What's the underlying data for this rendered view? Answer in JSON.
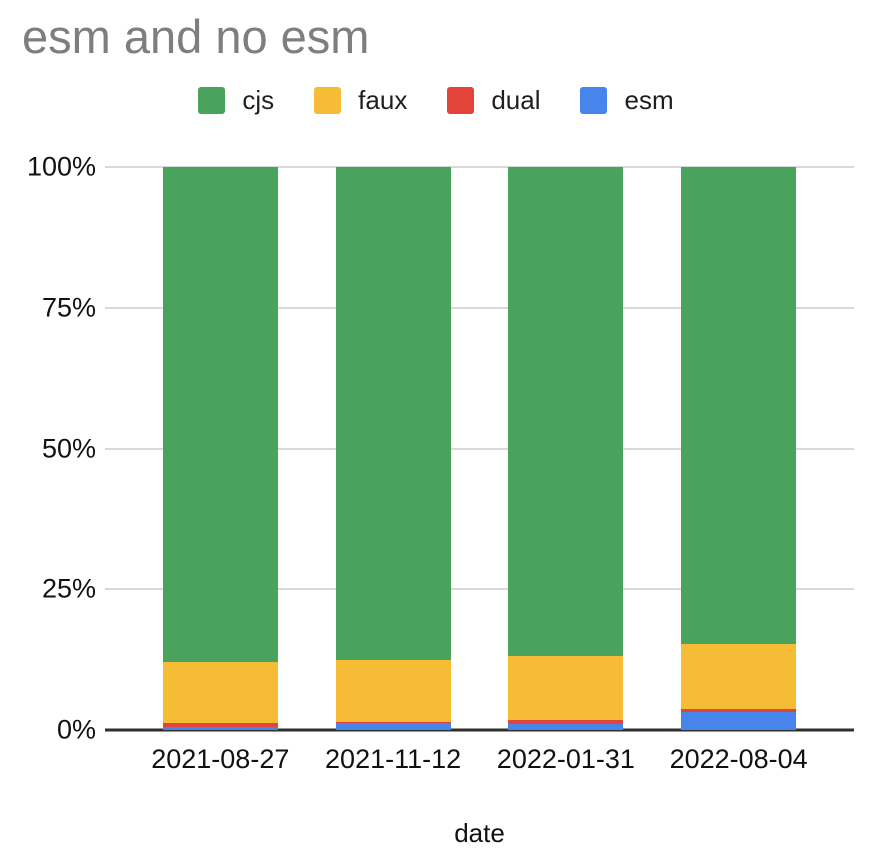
{
  "chart_data": {
    "type": "bar",
    "stacked": true,
    "percent": true,
    "title": "esm and no esm",
    "xlabel": "date",
    "ylabel": "",
    "categories": [
      "2021-08-27",
      "2021-11-12",
      "2022-01-31",
      "2022-08-04"
    ],
    "series": [
      {
        "name": "cjs",
        "color": "#4aa35c",
        "values": [
          88.0,
          87.6,
          86.8,
          84.7
        ]
      },
      {
        "name": "faux",
        "color": "#f6bc36",
        "values": [
          10.8,
          10.9,
          11.5,
          11.6
        ]
      },
      {
        "name": "dual",
        "color": "#e2443a",
        "values": [
          0.6,
          0.2,
          0.6,
          0.5
        ]
      },
      {
        "name": "esm",
        "color": "#4785eb",
        "values": [
          0.6,
          1.3,
          1.1,
          3.2
        ]
      }
    ],
    "stack_order_bottom_to_top": [
      "esm",
      "dual",
      "faux",
      "cjs"
    ],
    "ylim": [
      0,
      100
    ],
    "yticks": [
      "0%",
      "25%",
      "50%",
      "75%",
      "100%"
    ],
    "ytick_values": [
      0,
      25,
      50,
      75,
      100
    ],
    "grid": true,
    "legend_position": "top",
    "colors": {
      "title_text": "#7e7e7e",
      "axis_text": "#111111",
      "gridline": "#d9d9d9",
      "axis_line": "#2f2f2f"
    }
  }
}
